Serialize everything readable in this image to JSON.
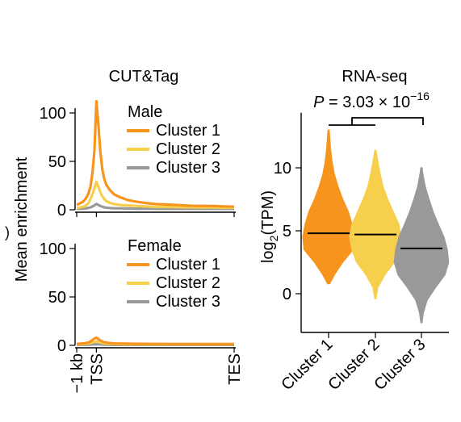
{
  "colors": {
    "cluster1": "#F7941D",
    "cluster2": "#F6D04D",
    "cluster3": "#999999",
    "median": "#000000"
  },
  "stray_mark": ")",
  "chart_data": [
    {
      "type": "line",
      "title": "CUT&Tag",
      "ylabel": "Mean enrichment",
      "x_tick_labels": [
        "−1 kb",
        "TSS",
        "TES"
      ],
      "panels": [
        {
          "name": "Male",
          "ylim": [
            0,
            120
          ],
          "yticks": [
            0,
            50,
            100
          ],
          "x": [
            -1.0,
            -0.9,
            -0.8,
            -0.7,
            -0.6,
            -0.5,
            -0.4,
            -0.3,
            -0.2,
            -0.1,
            0.0,
            0.1,
            0.2,
            0.3,
            0.4,
            0.5,
            0.7,
            0.9,
            1.2,
            1.6,
            2.0,
            2.5,
            3.0,
            3.5,
            4.0,
            4.5,
            5.0,
            5.5,
            6.0,
            6.5,
            7.0
          ],
          "series": [
            {
              "name": "Cluster 1",
              "values": [
                5,
                6,
                7,
                8,
                10,
                13,
                17,
                24,
                38,
                60,
                112,
                88,
                60,
                42,
                32,
                26,
                20,
                16,
                13,
                10,
                8.5,
                7,
                6,
                5.5,
                5,
                4.5,
                4,
                4,
                3.8,
                3.5,
                3.2
              ]
            },
            {
              "name": "Cluster 2",
              "values": [
                2,
                2,
                2.5,
                3,
                3.5,
                5,
                7,
                11,
                16,
                22,
                29,
                24,
                18,
                14,
                11,
                9,
                7,
                6,
                5,
                4.5,
                4,
                3.5,
                3,
                3,
                2.8,
                2.6,
                2.5,
                2.4,
                2.3,
                2.2,
                2.1
              ]
            },
            {
              "name": "Cluster 3",
              "values": [
                1,
                1,
                1,
                1.2,
                1.3,
                1.5,
                2,
                2.5,
                3.5,
                4.5,
                6,
                5,
                4,
                3.2,
                2.6,
                2.2,
                1.8,
                1.6,
                1.5,
                1.3,
                1.2,
                1.1,
                1,
                1,
                1,
                1,
                1,
                1,
                1,
                1,
                1
              ]
            }
          ]
        },
        {
          "name": "Female",
          "ylim": [
            0,
            120
          ],
          "yticks": [
            0,
            50,
            100
          ],
          "x": [
            -1.0,
            -0.8,
            -0.6,
            -0.4,
            -0.3,
            -0.2,
            -0.1,
            0.0,
            0.1,
            0.2,
            0.3,
            0.4,
            0.6,
            0.9,
            1.4,
            2.0,
            3.0,
            4.0,
            5.0,
            6.0,
            7.0
          ],
          "series": [
            {
              "name": "Cluster 1",
              "values": [
                1.5,
                1.8,
                2.2,
                3,
                4,
                5.5,
                7,
                8,
                6.5,
                5,
                4,
                3.2,
                2.5,
                2,
                1.8,
                1.6,
                1.5,
                1.4,
                1.4,
                1.3,
                1.3
              ]
            },
            {
              "name": "Cluster 2",
              "values": [
                1,
                1.2,
                1.5,
                2,
                2.4,
                3,
                3.6,
                4,
                3.5,
                3,
                2.5,
                2,
                1.6,
                1.4,
                1.2,
                1.1,
                1,
                1,
                1,
                1,
                1
              ]
            },
            {
              "name": "Cluster 3",
              "values": [
                0.5,
                0.5,
                0.6,
                0.7,
                0.8,
                0.9,
                1,
                1.1,
                1,
                0.9,
                0.8,
                0.7,
                0.6,
                0.5,
                0.5,
                0.5,
                0.5,
                0.5,
                0.5,
                0.5,
                0.5
              ]
            }
          ]
        }
      ]
    },
    {
      "type": "violin",
      "title": "RNA-seq",
      "ylabel_base": "log",
      "ylabel_sub": "2",
      "ylabel_rest": "(TPM)",
      "ylim": [
        -2.5,
        14
      ],
      "yticks": [
        0,
        5,
        10
      ],
      "categories": [
        "Cluster 1",
        "Cluster 2",
        "Cluster 3"
      ],
      "pvalue_prefix": "P",
      "pvalue_mid": " = 3.03 × 10",
      "pvalue_exp": "−16",
      "medians": [
        4.8,
        4.7,
        3.6
      ],
      "series": [
        {
          "name": "Cluster 1",
          "y": [
            0.8,
            1.5,
            2.5,
            3.5,
            4.5,
            5.5,
            6.5,
            7.5,
            8.5,
            9.5,
            10.5,
            11.5,
            12.5,
            13.0
          ],
          "halfwidth": [
            0.02,
            0.12,
            0.3,
            0.52,
            0.55,
            0.5,
            0.42,
            0.3,
            0.2,
            0.12,
            0.07,
            0.04,
            0.02,
            0.01
          ]
        },
        {
          "name": "Cluster 2",
          "y": [
            -0.4,
            0.5,
            1.5,
            2.5,
            3.5,
            4.5,
            5.5,
            6.5,
            7.5,
            8.5,
            9.5,
            10.5,
            11.4
          ],
          "halfwidth": [
            0.01,
            0.05,
            0.2,
            0.4,
            0.5,
            0.55,
            0.5,
            0.38,
            0.26,
            0.16,
            0.1,
            0.05,
            0.01
          ]
        },
        {
          "name": "Cluster 3",
          "y": [
            -2.3,
            -1.5,
            -0.5,
            0.5,
            1.5,
            2.5,
            3.5,
            4.5,
            5.5,
            6.5,
            7.5,
            8.5,
            9.5,
            10.0
          ],
          "halfwidth": [
            0.01,
            0.04,
            0.12,
            0.3,
            0.5,
            0.58,
            0.55,
            0.48,
            0.36,
            0.25,
            0.16,
            0.08,
            0.03,
            0.01
          ]
        }
      ]
    }
  ]
}
